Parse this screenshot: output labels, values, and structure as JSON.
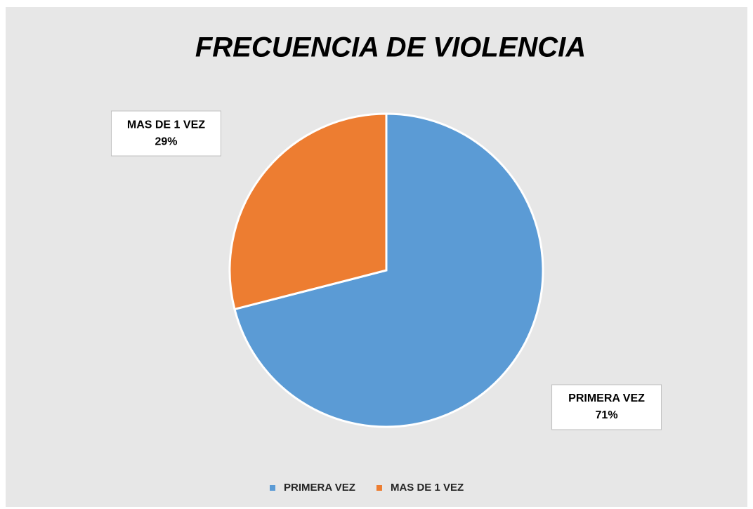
{
  "chart_data": {
    "type": "pie",
    "title": "FRECUENCIA DE VIOLENCIA",
    "categories": [
      "PRIMERA VEZ",
      "MAS DE 1 VEZ"
    ],
    "values": [
      71,
      29
    ],
    "value_labels": [
      "71%",
      "29%"
    ],
    "colors": [
      "#5b9bd5",
      "#ed7d31"
    ],
    "legend": "bottom"
  }
}
